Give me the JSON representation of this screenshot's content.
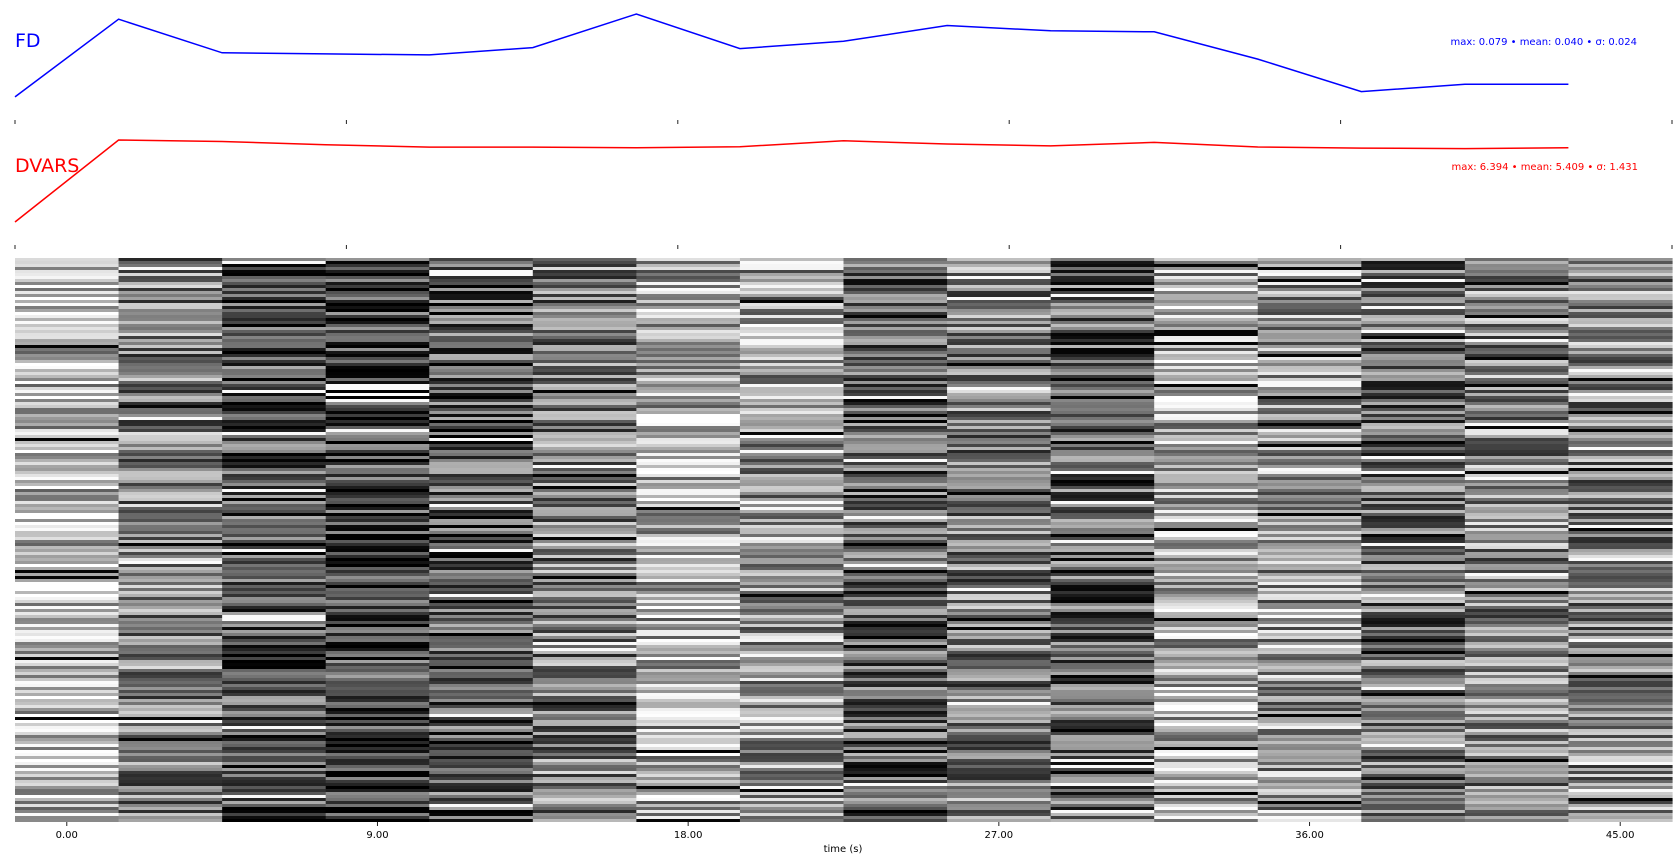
{
  "chart_data": [
    {
      "type": "line",
      "series": [
        {
          "name": "FD",
          "color": "#0000ff",
          "values": [
            0.003,
            0.077,
            0.045,
            0.044,
            0.043,
            0.05,
            0.082,
            0.049,
            0.056,
            0.071,
            0.066,
            0.065,
            0.039,
            0.008,
            0.015,
            0.015
          ]
        }
      ],
      "stats": "max: 0.079 • mean: 0.040 • σ: 0.024"
    },
    {
      "type": "line",
      "series": [
        {
          "name": "DVARS",
          "color": "#ff0000",
          "values": [
            0.3,
            6.4,
            6.29,
            6.05,
            5.87,
            5.87,
            5.83,
            5.9,
            6.34,
            6.1,
            5.96,
            6.22,
            5.88,
            5.8,
            5.76,
            5.82
          ]
        }
      ],
      "stats": "max: 6.394 • mean: 5.409 • σ: 1.431"
    },
    {
      "type": "heatmap",
      "colormap": "gray",
      "n_timepoints": 16,
      "x": [
        0,
        3,
        6,
        9,
        12,
        15,
        18,
        21,
        24,
        27,
        30,
        33,
        36,
        39,
        42,
        45
      ],
      "column_mean_intensity": [
        0.74,
        0.52,
        0.33,
        0.27,
        0.35,
        0.5,
        0.66,
        0.62,
        0.36,
        0.5,
        0.38,
        0.68,
        0.6,
        0.44,
        0.55,
        0.54
      ],
      "xlabel": "time (s)",
      "xticks": [
        "0.00",
        "9.00",
        "18.00",
        "27.00",
        "36.00",
        "45.00"
      ],
      "xtick_values": [
        0,
        9,
        18,
        27,
        36,
        45
      ]
    }
  ]
}
